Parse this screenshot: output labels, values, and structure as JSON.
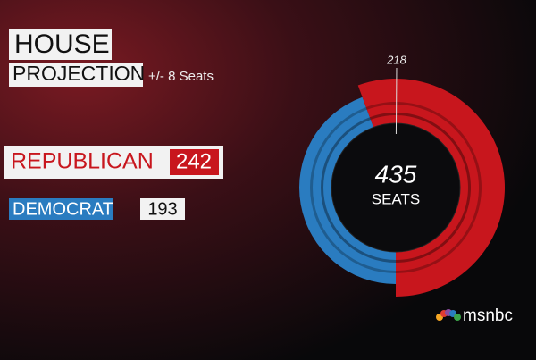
{
  "chart_data": {
    "type": "donut",
    "title": "HOUSE",
    "subtitle": "PROJECTION",
    "annotation": "+/- 8 Seats",
    "categories": [
      "REPUBLICAN",
      "DEMOCRAT"
    ],
    "values": [
      242,
      193
    ],
    "colors": [
      "#c8161d",
      "#2a7cc0"
    ],
    "total": 435,
    "total_label": "SEATS",
    "majority": 218,
    "brand": "msnbc"
  }
}
